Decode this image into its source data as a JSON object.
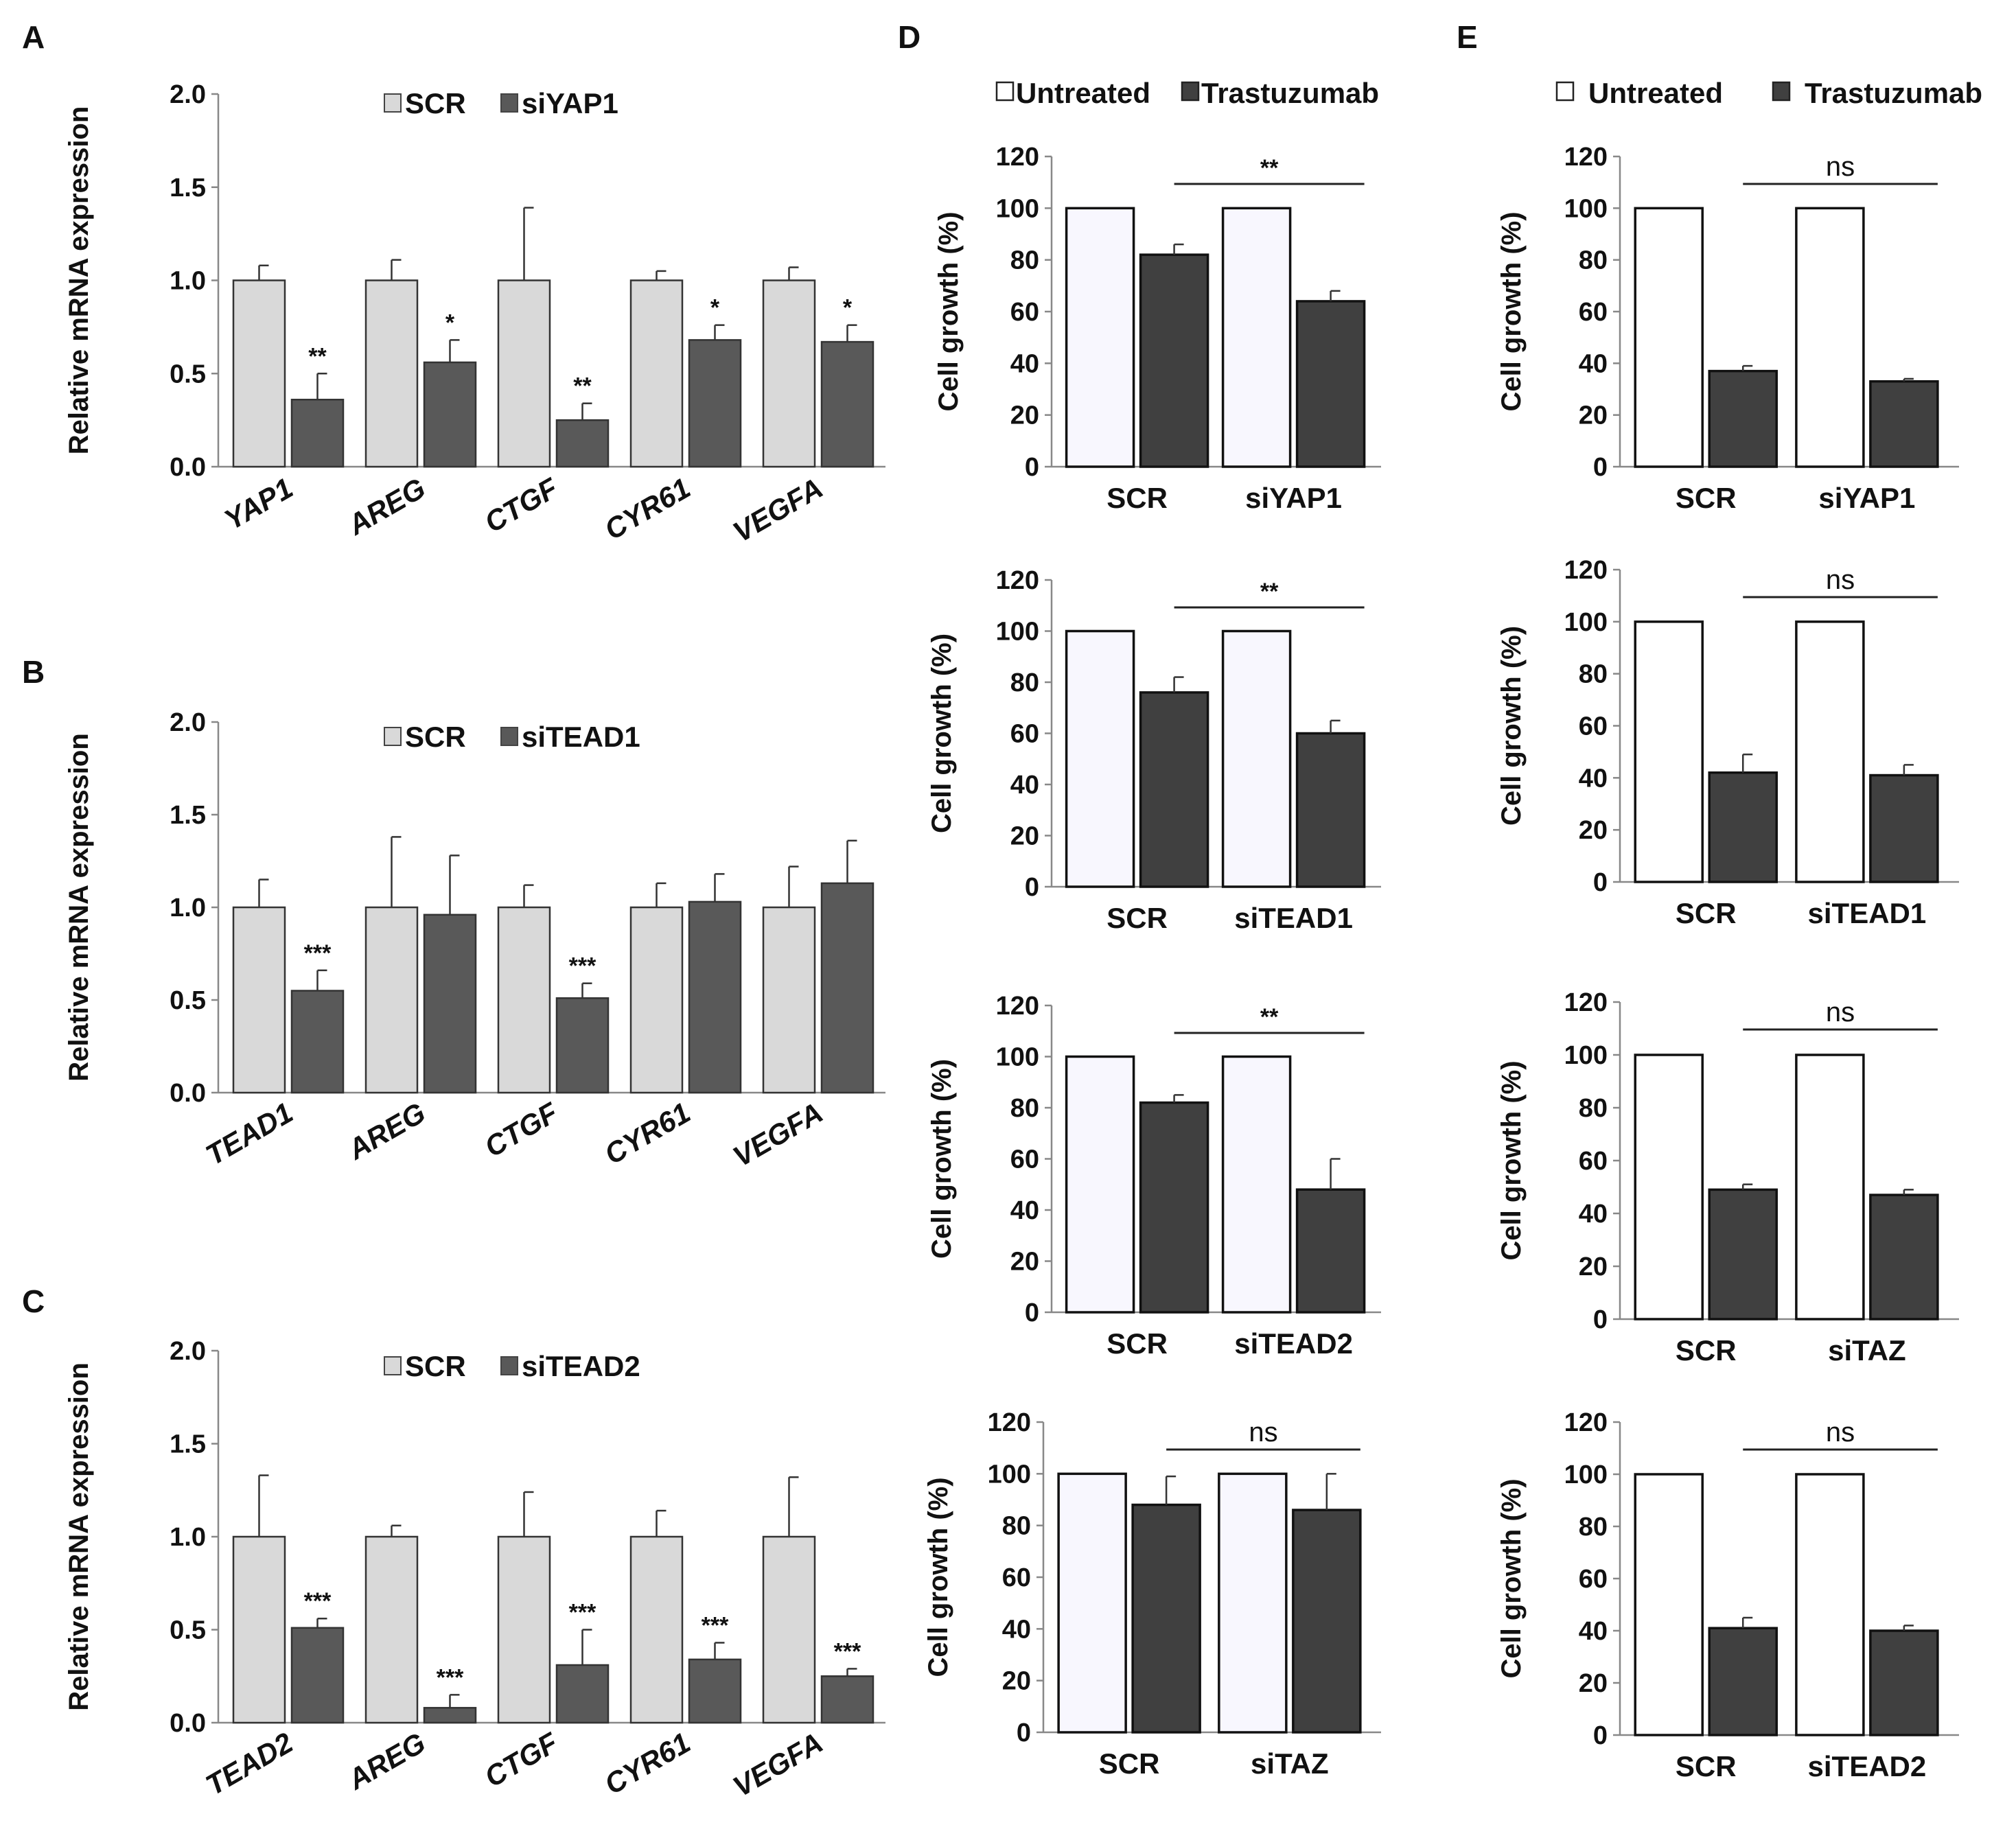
{
  "chart_data": [
    {
      "id": "A",
      "panel_label": "A",
      "type": "bar",
      "ylabel": "Relative mRNA expression",
      "ylim": [
        0,
        2.0
      ],
      "yticks": [
        "0.0",
        "0.5",
        "1.0",
        "1.5",
        "2.0"
      ],
      "categories": [
        "YAP1",
        "AREG",
        "CTGF",
        "CYR61",
        "VEGFA"
      ],
      "category_style": "italic",
      "series": [
        {
          "name": "SCR",
          "color": "#d9d9d9",
          "values": [
            1.0,
            1.0,
            1.0,
            1.0,
            1.0
          ],
          "errors": [
            0.08,
            0.11,
            0.39,
            0.05,
            0.07
          ]
        },
        {
          "name": "siYAP1",
          "color": "#595959",
          "values": [
            0.36,
            0.56,
            0.25,
            0.68,
            0.67
          ],
          "errors": [
            0.14,
            0.12,
            0.09,
            0.08,
            0.09
          ]
        }
      ],
      "significance": [
        "**",
        "*",
        "**",
        "*",
        "*"
      ]
    },
    {
      "id": "B",
      "panel_label": "B",
      "type": "bar",
      "ylabel": "Relative mRNA expression",
      "ylim": [
        0,
        2.0
      ],
      "yticks": [
        "0.0",
        "0.5",
        "1.0",
        "1.5",
        "2.0"
      ],
      "categories": [
        "TEAD1",
        "AREG",
        "CTGF",
        "CYR61",
        "VEGFA"
      ],
      "category_style": "italic",
      "series": [
        {
          "name": "SCR",
          "color": "#d9d9d9",
          "values": [
            1.0,
            1.0,
            1.0,
            1.0,
            1.0
          ],
          "errors": [
            0.15,
            0.38,
            0.12,
            0.13,
            0.22
          ]
        },
        {
          "name": "siTEAD1",
          "color": "#595959",
          "values": [
            0.55,
            0.96,
            0.51,
            1.03,
            1.13
          ],
          "errors": [
            0.11,
            0.32,
            0.08,
            0.15,
            0.23
          ]
        }
      ],
      "significance": [
        "***",
        "",
        "***",
        "",
        ""
      ]
    },
    {
      "id": "C",
      "panel_label": "C",
      "type": "bar",
      "ylabel": "Relative mRNA expression",
      "ylim": [
        0,
        2.0
      ],
      "yticks": [
        "0.0",
        "0.5",
        "1.0",
        "1.5",
        "2.0"
      ],
      "categories": [
        "TEAD2",
        "AREG",
        "CTGF",
        "CYR61",
        "VEGFA"
      ],
      "category_style": "italic",
      "series": [
        {
          "name": "SCR",
          "color": "#d9d9d9",
          "values": [
            1.0,
            1.0,
            1.0,
            1.0,
            1.0
          ],
          "errors": [
            0.33,
            0.06,
            0.24,
            0.14,
            0.32
          ]
        },
        {
          "name": "siTEAD2",
          "color": "#595959",
          "values": [
            0.51,
            0.08,
            0.31,
            0.34,
            0.25
          ],
          "errors": [
            0.05,
            0.07,
            0.19,
            0.09,
            0.04
          ]
        }
      ],
      "significance": [
        "***",
        "***",
        "***",
        "***",
        "***"
      ]
    },
    {
      "id": "D1",
      "panel_label": "D",
      "type": "bar",
      "legend": {
        "labels": [
          "Untreated",
          "Trastuzumab"
        ],
        "position": "top"
      },
      "ylabel": "Cell growth (%)",
      "ylim": [
        0,
        120
      ],
      "yticks": [
        "0",
        "20",
        "40",
        "60",
        "80",
        "100",
        "120"
      ],
      "categories": [
        "SCR",
        "siYAP1"
      ],
      "series": [
        {
          "name": "Untreated",
          "color": "#f8f7fe",
          "values": [
            100,
            100
          ],
          "errors": [
            0,
            0
          ]
        },
        {
          "name": "Trastuzumab",
          "color": "#404040",
          "values": [
            82,
            64
          ],
          "errors": [
            4,
            4
          ]
        }
      ],
      "comparison": "**"
    },
    {
      "id": "D2",
      "type": "bar",
      "ylabel": "Cell growth (%)",
      "ylim": [
        0,
        120
      ],
      "yticks": [
        "0",
        "20",
        "40",
        "60",
        "80",
        "100",
        "120"
      ],
      "categories": [
        "SCR",
        "siTEAD1"
      ],
      "series": [
        {
          "name": "Untreated",
          "color": "#f8f7fe",
          "values": [
            100,
            100
          ],
          "errors": [
            0,
            0
          ]
        },
        {
          "name": "Trastuzumab",
          "color": "#404040",
          "values": [
            76,
            60
          ],
          "errors": [
            6,
            5
          ]
        }
      ],
      "comparison": "**"
    },
    {
      "id": "D3",
      "type": "bar",
      "ylabel": "Cell growth (%)",
      "ylim": [
        0,
        120
      ],
      "yticks": [
        "0",
        "20",
        "40",
        "60",
        "80",
        "100",
        "120"
      ],
      "categories": [
        "SCR",
        "siTEAD2"
      ],
      "series": [
        {
          "name": "Untreated",
          "color": "#f8f7fe",
          "values": [
            100,
            100
          ],
          "errors": [
            0,
            0
          ]
        },
        {
          "name": "Trastuzumab",
          "color": "#404040",
          "values": [
            82,
            48
          ],
          "errors": [
            3,
            12
          ]
        }
      ],
      "comparison": "**"
    },
    {
      "id": "D4",
      "type": "bar",
      "ylabel": "Cell growth (%)",
      "ylim": [
        0,
        120
      ],
      "yticks": [
        "0",
        "20",
        "40",
        "60",
        "80",
        "100",
        "120"
      ],
      "categories": [
        "SCR",
        "siTAZ"
      ],
      "series": [
        {
          "name": "Untreated",
          "color": "#f8f7fe",
          "values": [
            100,
            100
          ],
          "errors": [
            0,
            0
          ]
        },
        {
          "name": "Trastuzumab",
          "color": "#404040",
          "values": [
            88,
            86
          ],
          "errors": [
            11,
            14
          ]
        }
      ],
      "comparison": "ns"
    },
    {
      "id": "E1",
      "panel_label": "E",
      "type": "bar",
      "legend": {
        "labels": [
          "Untreated",
          "Trastuzumab"
        ],
        "position": "top"
      },
      "ylabel": "Cell growth (%)",
      "ylim": [
        0,
        120
      ],
      "yticks": [
        "0",
        "20",
        "40",
        "60",
        "80",
        "100",
        "120"
      ],
      "categories": [
        "SCR",
        "siYAP1"
      ],
      "series": [
        {
          "name": "Untreated",
          "color": "#ffffff",
          "values": [
            100,
            100
          ],
          "errors": [
            0,
            0
          ]
        },
        {
          "name": "Trastuzumab",
          "color": "#404040",
          "values": [
            37,
            33
          ],
          "errors": [
            2,
            1
          ]
        }
      ],
      "comparison": "ns"
    },
    {
      "id": "E2",
      "type": "bar",
      "ylabel": "Cell growth (%)",
      "ylim": [
        0,
        120
      ],
      "yticks": [
        "0",
        "20",
        "40",
        "60",
        "80",
        "100",
        "120"
      ],
      "categories": [
        "SCR",
        "siTEAD1"
      ],
      "series": [
        {
          "name": "Untreated",
          "color": "#ffffff",
          "values": [
            100,
            100
          ],
          "errors": [
            0,
            0
          ]
        },
        {
          "name": "Trastuzumab",
          "color": "#404040",
          "values": [
            42,
            41
          ],
          "errors": [
            7,
            4
          ]
        }
      ],
      "comparison": "ns"
    },
    {
      "id": "E3",
      "type": "bar",
      "ylabel": "Cell growth (%)",
      "ylim": [
        0,
        120
      ],
      "yticks": [
        "0",
        "20",
        "40",
        "60",
        "80",
        "100",
        "120"
      ],
      "categories": [
        "SCR",
        "siTAZ"
      ],
      "series": [
        {
          "name": "Untreated",
          "color": "#ffffff",
          "values": [
            100,
            100
          ],
          "errors": [
            0,
            0
          ]
        },
        {
          "name": "Trastuzumab",
          "color": "#404040",
          "values": [
            49,
            47
          ],
          "errors": [
            2,
            2
          ]
        }
      ],
      "comparison": "ns"
    },
    {
      "id": "E4",
      "type": "bar",
      "ylabel": "Cell growth (%)",
      "ylim": [
        0,
        120
      ],
      "yticks": [
        "0",
        "20",
        "40",
        "60",
        "80",
        "100",
        "120"
      ],
      "categories": [
        "SCR",
        "siTEAD2"
      ],
      "series": [
        {
          "name": "Untreated",
          "color": "#ffffff",
          "values": [
            100,
            100
          ],
          "errors": [
            0,
            0
          ]
        },
        {
          "name": "Trastuzumab",
          "color": "#404040",
          "values": [
            41,
            40
          ],
          "errors": [
            4,
            2
          ]
        }
      ],
      "comparison": "ns"
    }
  ]
}
